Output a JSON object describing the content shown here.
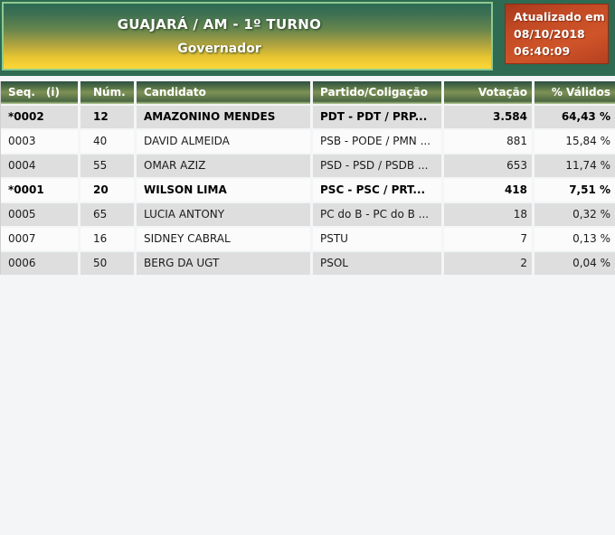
{
  "banner": {
    "title": "GUAJARÁ / AM - 1º TURNO",
    "subtitle": "Governador"
  },
  "updated": {
    "label": "Atualizado em",
    "date": "08/10/2018",
    "time": "06:40:09"
  },
  "table": {
    "header": {
      "seq": "Seq.",
      "seq_info": "(i)",
      "num": "Núm.",
      "candidato": "Candidato",
      "partido": "Partido/Coligação",
      "votacao": "Votação",
      "validos": "% Válidos"
    },
    "rows": [
      {
        "seq": "*0002",
        "num": "12",
        "candidato": "AMAZONINO MENDES",
        "partido": "PDT - PDT / PRP...",
        "votacao": "3.584",
        "validos": "64,43 %",
        "elected": true
      },
      {
        "seq": "0003",
        "num": "40",
        "candidato": "DAVID ALMEIDA",
        "partido": "PSB - PODE / PMN ...",
        "votacao": "881",
        "validos": "15,84 %",
        "elected": false
      },
      {
        "seq": "0004",
        "num": "55",
        "candidato": "OMAR AZIZ",
        "partido": "PSD - PSD / PSDB ...",
        "votacao": "653",
        "validos": "11,74 %",
        "elected": false
      },
      {
        "seq": "*0001",
        "num": "20",
        "candidato": "WILSON LIMA",
        "partido": "PSC - PSC / PRT...",
        "votacao": "418",
        "validos": "7,51 %",
        "elected": true
      },
      {
        "seq": "0005",
        "num": "65",
        "candidato": "LUCIA ANTONY",
        "partido": "PC do B - PC do B ...",
        "votacao": "18",
        "validos": "0,32 %",
        "elected": false
      },
      {
        "seq": "0007",
        "num": "16",
        "candidato": "SIDNEY CABRAL",
        "partido": "PSTU",
        "votacao": "7",
        "validos": "0,13 %",
        "elected": false
      },
      {
        "seq": "0006",
        "num": "50",
        "candidato": "BERG DA UGT",
        "partido": "PSOL",
        "votacao": "2",
        "validos": "0,04 %",
        "elected": false
      }
    ]
  },
  "colors": {
    "strip_green": "#2e6b52",
    "banner_border_green": "#8fca8f",
    "banner_yellow": "#f4d034",
    "updated_box_red": "#c24a24",
    "updated_box_border": "#8e2d14",
    "table_header_green": "#6d8450",
    "row_gray": "#dedede",
    "row_white": "#fbfbfb",
    "page_background": "#f3f5f6"
  }
}
